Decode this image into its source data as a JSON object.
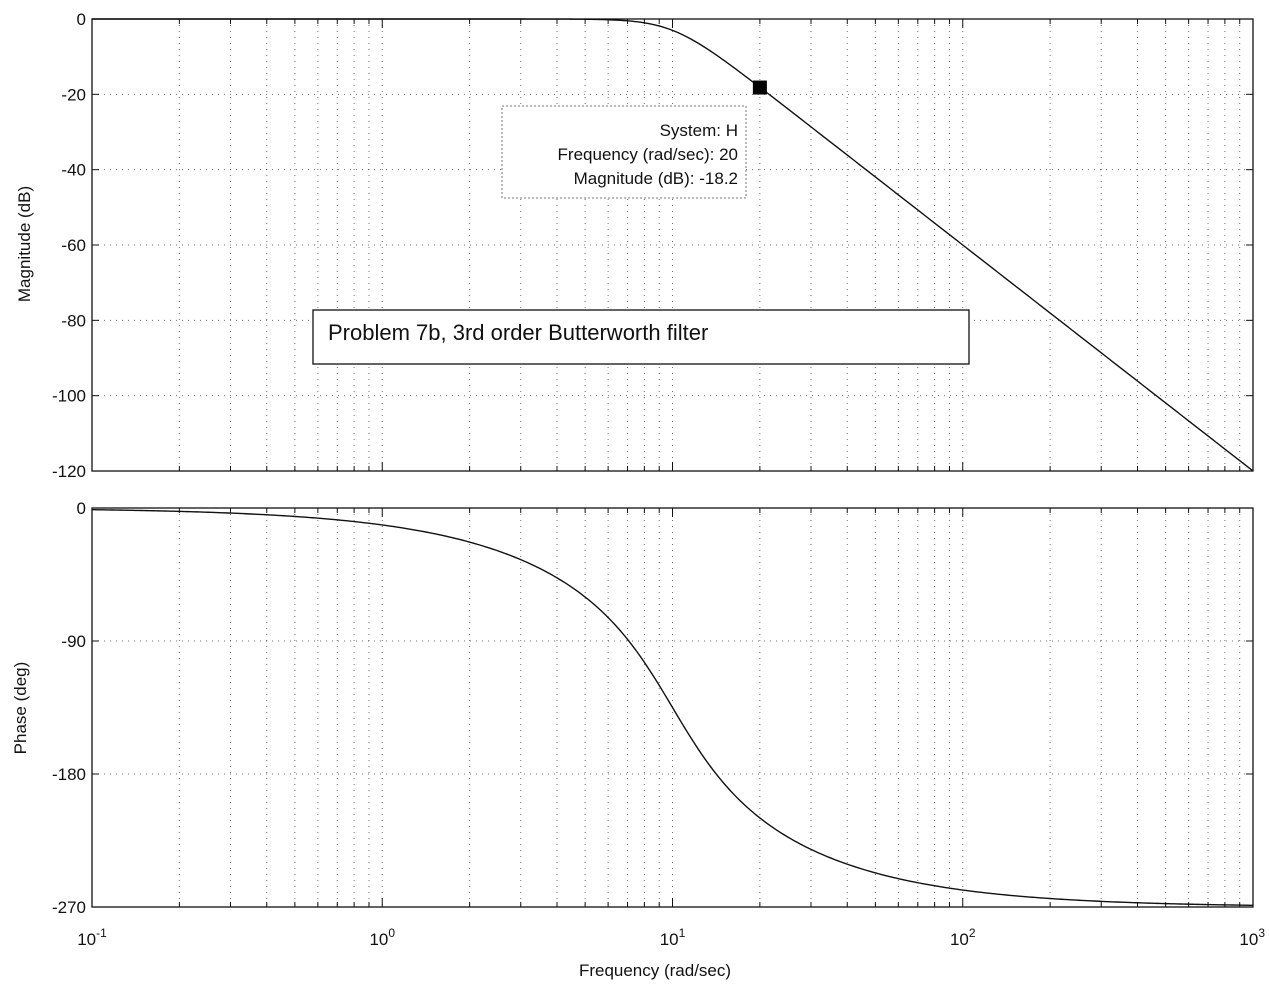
{
  "chart_data": [
    {
      "type": "line",
      "panel": "magnitude",
      "x_scale": "log",
      "xlim": [
        0.1,
        1000
      ],
      "ylim": [
        -120,
        0
      ],
      "ylabel": "Magnitude (dB)",
      "yticks": [
        "0",
        "-20",
        "-40",
        "-60",
        "-80",
        "-100",
        "-120"
      ],
      "ytick_values": [
        0,
        -20,
        -40,
        -60,
        -80,
        -100,
        -120
      ],
      "grid": true,
      "series": [
        {
          "function": "3rd order Butterworth magnitude",
          "cutoff_rad_per_sec": 10
        }
      ],
      "annotation": "Problem 7b, 3rd order Butterworth filter",
      "datatip": {
        "x": 20,
        "y": -18.2,
        "lines": [
          "System: H",
          "Frequency (rad/sec): 20",
          "Magnitude (dB): -18.2"
        ]
      }
    },
    {
      "type": "line",
      "panel": "phase",
      "x_scale": "log",
      "xlim": [
        0.1,
        1000
      ],
      "ylim": [
        -270,
        0
      ],
      "ylabel": "Phase (deg)",
      "yticks": [
        "0",
        "-90",
        "-180",
        "-270"
      ],
      "ytick_values": [
        0,
        -90,
        -180,
        -270
      ],
      "grid": true,
      "series": [
        {
          "function": "3rd order Butterworth phase",
          "cutoff_rad_per_sec": 10
        }
      ]
    }
  ],
  "x_axis": {
    "xlabel": "Frequency  (rad/sec)",
    "ticks": [
      {
        "base": "10",
        "exp": "-1",
        "value": 0.1
      },
      {
        "base": "10",
        "exp": "0",
        "value": 1
      },
      {
        "base": "10",
        "exp": "1",
        "value": 10
      },
      {
        "base": "10",
        "exp": "2",
        "value": 100
      },
      {
        "base": "10",
        "exp": "3",
        "value": 1000
      }
    ]
  }
}
